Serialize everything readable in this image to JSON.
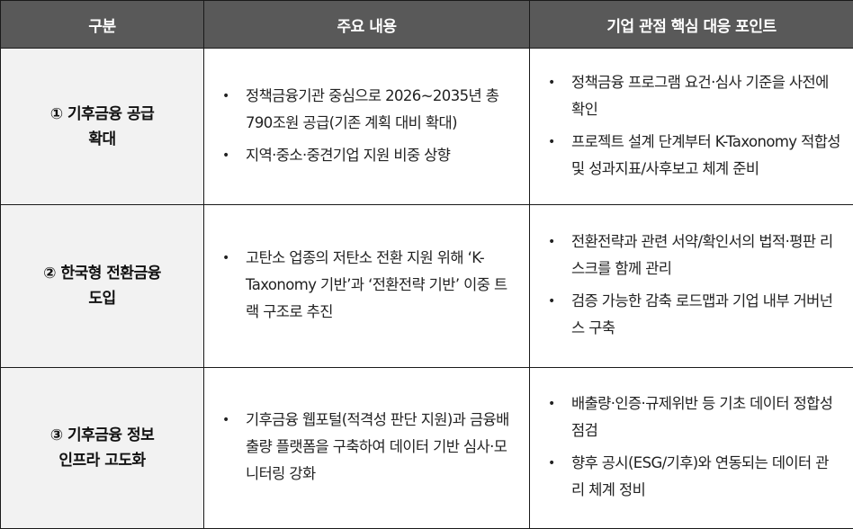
{
  "headers": [
    "구분",
    "주요 내용",
    "기업 관점 핵심 대응 포인트"
  ],
  "rows": [
    {
      "category": [
        "① 기후금융 공급",
        "확대"
      ],
      "content": [
        "정책금융기관 중심으로 2026~2035년 총 790조원 공급(기존 계획 대비 확대)",
        "지역·중소·중견기업 지원 비중 상향"
      ],
      "points": [
        "정책금융 프로그램 요건·심사 기준을 사전에 확인",
        "프로젝트 설계 단계부터 K-Taxonomy 적합성 및 성과지표/사후보고 체계 준비"
      ]
    },
    {
      "category": [
        "② 한국형 전환금융",
        "도입"
      ],
      "content": [
        "고탄소 업종의 저탄소 전환 지원 위해 ‘K-Taxonomy 기반’과 ‘전환전략 기반’ 이중 트랙 구조로 추진"
      ],
      "points": [
        "전환전략과 관련 서약/확인서의 법적·평판 리스크를 함께 관리",
        "검증 가능한 감축 로드맵과 기업 내부 거버넌스 구축"
      ]
    },
    {
      "category": [
        "③ 기후금융 정보",
        "인프라 고도화"
      ],
      "content": [
        "기후금융 웹포털(적격성 판단 지원)과 금융배출량 플랫폼을 구축하여 데이터 기반 심사·모니터링 강화"
      ],
      "points": [
        "배출량·인증·규제위반 등 기초 데이터 정합성 점검",
        "향후 공시(ESG/기후)와 연동되는 데이터 관리 체계 정비"
      ]
    }
  ]
}
